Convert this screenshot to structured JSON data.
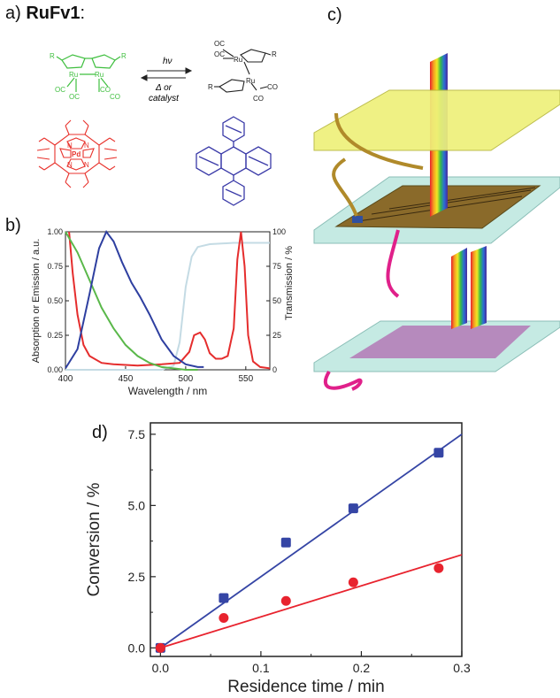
{
  "panel_a": {
    "label": "a)",
    "compound": "RuFv1",
    "colon": ":",
    "arrow_top": "hν",
    "arrow_bottom_1": "Δ or",
    "arrow_bottom_2": "catalyst",
    "dimer_atoms": {
      "r1": "R",
      "r2": "R",
      "ru1": "Ru",
      "ru2": "Ru",
      "co1": "OC",
      "co2": "OC",
      "co3": "CO",
      "co4": "CO"
    },
    "isomer_atoms": {
      "oc1": "OC",
      "oc2": "OC",
      "ru1": "Ru",
      "r1": "R",
      "r2": "R",
      "ru2": "Ru",
      "co1": "CO",
      "co2": "CO"
    },
    "porphyrin_atoms": {
      "metal": "Pd",
      "n1": "N",
      "n2": "N",
      "n3": "N",
      "n4": "N"
    },
    "colors": {
      "ruthenium": "#3fbf3f",
      "porphyrin": "#e8322c",
      "anthracene": "#3a3aa8"
    }
  },
  "panel_b_label": "b)",
  "panel_c_label": "c)",
  "panel_d_label": "d)",
  "chart_data": [
    {
      "type": "line",
      "panel": "b",
      "xlabel": "Wavelength / nm",
      "ylabel": "Absorption or Emission / a.u.",
      "y2label": "Transmission / %",
      "xlim": [
        400,
        570
      ],
      "ylim": [
        0,
        1.0
      ],
      "y2lim": [
        0,
        100
      ],
      "xticks": [
        "400",
        "450",
        "500",
        "550"
      ],
      "yticks": [
        "0.00",
        "0.25",
        "0.50",
        "0.75",
        "1.00"
      ],
      "y2ticks": [
        "0",
        "25",
        "50",
        "75",
        "100"
      ],
      "series": [
        {
          "color": "#2e3fa0",
          "axis": "left",
          "x": [
            400,
            410,
            420,
            428,
            434,
            440,
            447,
            455,
            462,
            470,
            480,
            490,
            500,
            510,
            515
          ],
          "y": [
            0.01,
            0.15,
            0.55,
            0.88,
            1.0,
            0.93,
            0.78,
            0.63,
            0.53,
            0.4,
            0.22,
            0.1,
            0.04,
            0.02,
            0.02
          ]
        },
        {
          "color": "#5ab84a",
          "axis": "left",
          "x": [
            400,
            410,
            420,
            430,
            440,
            450,
            460,
            470,
            480,
            490,
            500,
            510
          ],
          "y": [
            1.0,
            0.85,
            0.65,
            0.45,
            0.3,
            0.18,
            0.1,
            0.05,
            0.02,
            0.01,
            0.0,
            0.0
          ]
        },
        {
          "color": "#e52d2d",
          "axis": "left",
          "x": [
            403,
            406,
            410,
            415,
            420,
            430,
            440,
            460,
            480,
            495,
            503,
            507,
            512,
            516,
            520,
            525,
            530,
            535,
            540,
            543,
            546,
            549,
            552,
            556,
            562,
            570
          ],
          "y": [
            1.0,
            0.7,
            0.4,
            0.18,
            0.1,
            0.05,
            0.04,
            0.03,
            0.04,
            0.05,
            0.13,
            0.25,
            0.27,
            0.22,
            0.12,
            0.08,
            0.08,
            0.1,
            0.3,
            0.8,
            1.0,
            0.75,
            0.25,
            0.06,
            0.02,
            0.01
          ]
        },
        {
          "color": "#c4dbe4",
          "axis": "right",
          "x": [
            400,
            480,
            490,
            495,
            500,
            505,
            510,
            520,
            540,
            570
          ],
          "y": [
            0,
            0,
            3,
            20,
            60,
            82,
            89,
            91,
            92,
            92
          ]
        }
      ]
    },
    {
      "type": "scatter",
      "panel": "d",
      "xlabel": "Residence time / min",
      "ylabel": "Conversion / %",
      "xlim": [
        -0.01,
        0.3
      ],
      "ylim": [
        -0.3,
        7.9
      ],
      "xticks": [
        "0.0",
        "0.1",
        "0.2",
        "0.3"
      ],
      "yticks": [
        "0.0",
        "2.5",
        "5.0",
        "7.5"
      ],
      "series": [
        {
          "color": "#3545a5",
          "marker": "square",
          "x": [
            0.0,
            0.063,
            0.125,
            0.192,
            0.277
          ],
          "y": [
            0.0,
            1.75,
            3.7,
            4.9,
            6.85
          ],
          "fit_slope": 25.0
        },
        {
          "color": "#e8232e",
          "marker": "circle",
          "x": [
            0.0,
            0.063,
            0.125,
            0.192,
            0.277
          ],
          "y": [
            0.0,
            1.05,
            1.65,
            2.3,
            2.8
          ],
          "fit_slope": 10.9
        }
      ]
    }
  ]
}
